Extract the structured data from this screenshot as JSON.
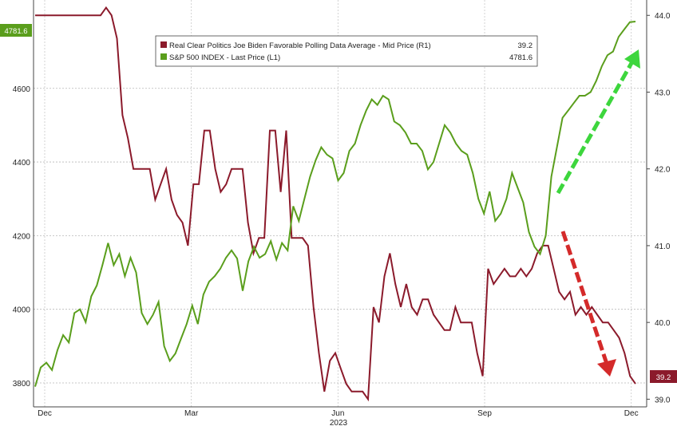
{
  "chart_data": {
    "type": "line",
    "x_axis": {
      "tick_labels": [
        "Dec",
        "Mar",
        "Jun",
        "Sep",
        "Dec"
      ],
      "year_label": "2023"
    },
    "left_axis": {
      "ticks": [
        3800,
        4000,
        4200,
        4400,
        4600
      ],
      "ylim": [
        3735,
        4840
      ]
    },
    "right_axis": {
      "ticks": [
        "39.0",
        "40.0",
        "41.0",
        "42.0",
        "43.0",
        "44.0"
      ],
      "ylim": [
        38.9,
        44.2
      ]
    },
    "grid": true,
    "legend_position": "top-center",
    "series": [
      {
        "name": "Real Clear Politics Joe Biden Favorable Polling Data Average - Mid Price (R1)",
        "axis": "right",
        "color": "#8b1a2b",
        "last_value": "39.2",
        "values": [
          44.0,
          44.0,
          44.0,
          44.0,
          44.0,
          44.0,
          44.0,
          44.0,
          44.0,
          44.0,
          44.0,
          44.0,
          44.0,
          44.1,
          44.0,
          43.7,
          42.7,
          42.4,
          42.0,
          42.0,
          42.0,
          42.0,
          41.6,
          41.8,
          42.0,
          41.6,
          41.4,
          41.3,
          41.0,
          41.8,
          41.8,
          42.5,
          42.5,
          42.0,
          41.7,
          41.8,
          42.0,
          42.0,
          42.0,
          41.3,
          40.9,
          41.1,
          41.1,
          42.5,
          42.5,
          41.7,
          42.5,
          41.1,
          41.1,
          41.1,
          41.0,
          40.2,
          39.6,
          39.1,
          39.5,
          39.6,
          39.4,
          39.2,
          39.1,
          39.1,
          39.1,
          39.0,
          40.2,
          40.0,
          40.6,
          40.9,
          40.5,
          40.2,
          40.5,
          40.2,
          40.1,
          40.3,
          40.3,
          40.1,
          40.0,
          39.9,
          39.9,
          40.2,
          40.0,
          40.0,
          40.0,
          39.6,
          39.3,
          40.7,
          40.5,
          40.6,
          40.7,
          40.6,
          40.6,
          40.7,
          40.6,
          40.7,
          40.9,
          41.0,
          41.0,
          40.7,
          40.4,
          40.3,
          40.4,
          40.1,
          40.2,
          40.1,
          40.2,
          40.1,
          40.0,
          40.0,
          39.9,
          39.8,
          39.6,
          39.3,
          39.2
        ]
      },
      {
        "name": "S&P 500 INDEX - Last Price (L1)",
        "axis": "left",
        "color": "#5a9e1c",
        "last_value": "4781.6",
        "values": [
          3790,
          3842,
          3855,
          3835,
          3890,
          3930,
          3910,
          3990,
          4000,
          3965,
          4035,
          4065,
          4120,
          4180,
          4120,
          4150,
          4090,
          4140,
          4100,
          3990,
          3960,
          3985,
          4020,
          3900,
          3860,
          3880,
          3920,
          3960,
          4010,
          3960,
          4040,
          4075,
          4090,
          4110,
          4140,
          4160,
          4138,
          4050,
          4130,
          4170,
          4140,
          4150,
          4185,
          4135,
          4180,
          4160,
          4280,
          4240,
          4300,
          4360,
          4405,
          4440,
          4420,
          4410,
          4350,
          4370,
          4430,
          4450,
          4500,
          4540,
          4570,
          4555,
          4580,
          4570,
          4510,
          4500,
          4480,
          4450,
          4450,
          4430,
          4380,
          4400,
          4450,
          4500,
          4480,
          4450,
          4430,
          4420,
          4370,
          4300,
          4260,
          4320,
          4240,
          4260,
          4300,
          4370,
          4330,
          4290,
          4210,
          4170,
          4150,
          4200,
          4360,
          4440,
          4520,
          4540,
          4560,
          4580,
          4580,
          4590,
          4620,
          4660,
          4690,
          4700,
          4740,
          4760,
          4780,
          4781.6
        ]
      }
    ]
  }
}
